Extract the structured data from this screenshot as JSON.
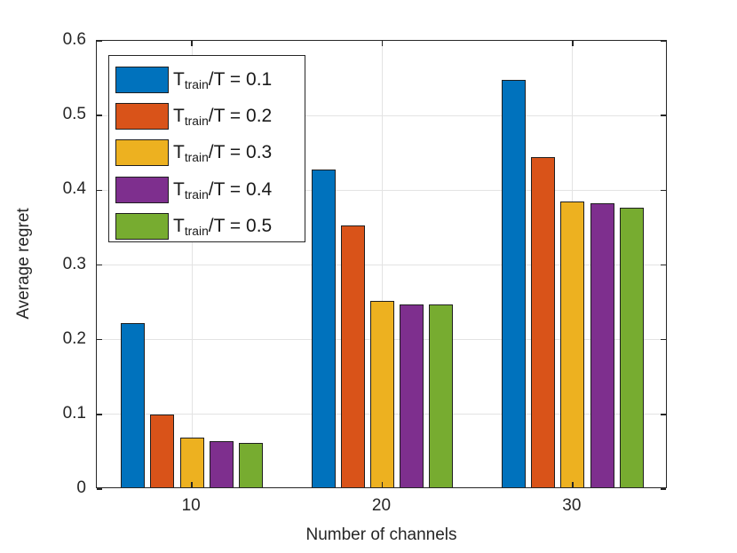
{
  "chart_data": {
    "type": "bar",
    "title": "",
    "xlabel": "Number of channels",
    "ylabel": "Average regret",
    "categories": [
      "10",
      "20",
      "30"
    ],
    "series": [
      {
        "name": "T_train/T = 0.1",
        "label": {
          "prefix": "T",
          "sub": "train",
          "suffix": "/T = 0.1"
        },
        "color": "#0072BD",
        "values": [
          0.22,
          0.425,
          0.545
        ]
      },
      {
        "name": "T_train/T = 0.2",
        "label": {
          "prefix": "T",
          "sub": "train",
          "suffix": "/T = 0.2"
        },
        "color": "#D95319",
        "values": [
          0.097,
          0.35,
          0.442
        ]
      },
      {
        "name": "T_train/T = 0.3",
        "label": {
          "prefix": "T",
          "sub": "train",
          "suffix": "/T = 0.3"
        },
        "color": "#EDB120",
        "values": [
          0.066,
          0.25,
          0.382
        ]
      },
      {
        "name": "T_train/T = 0.4",
        "label": {
          "prefix": "T",
          "sub": "train",
          "suffix": "/T = 0.4"
        },
        "color": "#7E2F8E",
        "values": [
          0.062,
          0.245,
          0.38
        ]
      },
      {
        "name": "T_train/T = 0.5",
        "label": {
          "prefix": "T",
          "sub": "train",
          "suffix": "/T = 0.5"
        },
        "color": "#77AC30",
        "values": [
          0.06,
          0.245,
          0.374
        ]
      }
    ],
    "ylim": [
      0,
      0.6
    ],
    "yticks": [
      "0",
      "0.1",
      "0.2",
      "0.3",
      "0.4",
      "0.5",
      "0.6"
    ],
    "grid": true,
    "legend_position": "top-left",
    "colors": {
      "axis": "#262626",
      "grid": "#e3e3e3",
      "bar_edge": "#1f1f1f",
      "background": "#ffffff"
    }
  }
}
